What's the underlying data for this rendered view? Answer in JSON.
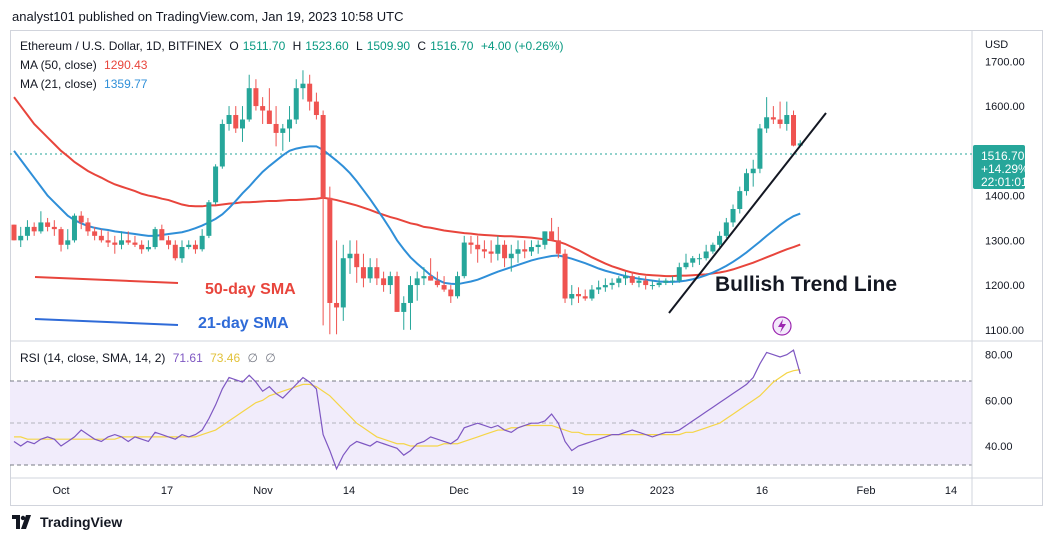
{
  "header": {
    "text": "analyst101 published on TradingView.com, Jan 19, 2023 10:58 UTC"
  },
  "legend": {
    "symbol": "Ethereum / U.S. Dollar, 1D, BITFINEX",
    "o_label": "O",
    "o": "1511.70",
    "h_label": "H",
    "h": "1523.60",
    "l_label": "L",
    "l": "1509.90",
    "c_label": "C",
    "c": "1516.70",
    "change": "+4.00 (+0.26%)",
    "ma50_label": "MA (50, close)",
    "ma50_value": "1290.43",
    "ma21_label": "MA (21, close)",
    "ma21_value": "1359.77",
    "rsi_label": "RSI (14, close, SMA, 14, 2)",
    "rsi_value": "71.61",
    "rsi_sma_value": "73.46",
    "empty1": "∅",
    "empty2": "∅"
  },
  "colors": {
    "up": "#26a69a",
    "down": "#ef5350",
    "ma50": "#e8453c",
    "ma21": "#2f8fd8",
    "rsi": "#7e57c2",
    "rsi_sma": "#f5d547",
    "trend": "#131722",
    "price_tag": "#26a69a"
  },
  "annotations": {
    "trend_line": "Bullish Trend Line",
    "sma50": "50-day SMA",
    "sma21": "21-day SMA"
  },
  "price_tag": {
    "price": "1516.70",
    "pct": "+14.29%",
    "time": "22:01:01"
  },
  "axis": {
    "currency": "USD"
  },
  "footer": {
    "brand": "TradingView"
  },
  "chart_data": {
    "type": "candlestick",
    "price_axis": {
      "ticks": [
        "1700.00",
        "1600.00",
        "1500.00",
        "1400.00",
        "1300.00",
        "1200.00",
        "1100.00"
      ],
      "ylim": [
        1075,
        1770
      ]
    },
    "rsi_axis": {
      "ticks": [
        "80.00",
        "60.00",
        "40.00"
      ],
      "ylim": [
        26,
        86
      ],
      "band": [
        30,
        70
      ]
    },
    "x_ticks": [
      "Oct",
      "17",
      "Nov",
      "14",
      "Dec",
      "19",
      "2023",
      "16",
      "Feb",
      "14"
    ],
    "dates_start": "2022-09-29",
    "candles": [
      [
        1335,
        1335,
        1300
      ],
      [
        1300,
        1330,
        1285
      ],
      [
        1310,
        1345,
        1300
      ],
      [
        1330,
        1340,
        1310
      ],
      [
        1320,
        1365,
        1315
      ],
      [
        1340,
        1350,
        1320
      ],
      [
        1330,
        1345,
        1310
      ],
      [
        1325,
        1330,
        1275
      ],
      [
        1290,
        1325,
        1280
      ],
      [
        1300,
        1360,
        1295
      ],
      [
        1355,
        1365,
        1325
      ],
      [
        1340,
        1350,
        1310
      ],
      [
        1320,
        1330,
        1300
      ],
      [
        1310,
        1325,
        1295
      ],
      [
        1300,
        1320,
        1285
      ],
      [
        1295,
        1310,
        1270
      ],
      [
        1290,
        1320,
        1280
      ],
      [
        1300,
        1320,
        1290
      ],
      [
        1295,
        1310,
        1285
      ],
      [
        1290,
        1300,
        1270
      ],
      [
        1280,
        1300,
        1275
      ],
      [
        1285,
        1330,
        1280
      ],
      [
        1325,
        1335,
        1305
      ],
      [
        1300,
        1310,
        1280
      ],
      [
        1290,
        1300,
        1255
      ],
      [
        1260,
        1300,
        1250
      ],
      [
        1285,
        1300,
        1280
      ],
      [
        1290,
        1300,
        1270
      ],
      [
        1280,
        1325,
        1275
      ],
      [
        1310,
        1390,
        1305
      ],
      [
        1385,
        1470,
        1380
      ],
      [
        1465,
        1570,
        1460
      ],
      [
        1560,
        1600,
        1545
      ],
      [
        1580,
        1600,
        1540
      ],
      [
        1550,
        1600,
        1520
      ],
      [
        1570,
        1670,
        1565
      ],
      [
        1640,
        1660,
        1590
      ],
      [
        1600,
        1620,
        1560
      ],
      [
        1590,
        1640,
        1580
      ],
      [
        1560,
        1600,
        1510
      ],
      [
        1540,
        1560,
        1500
      ],
      [
        1550,
        1600,
        1520
      ],
      [
        1570,
        1660,
        1560
      ],
      [
        1640,
        1680,
        1615
      ],
      [
        1650,
        1670,
        1590
      ],
      [
        1610,
        1630,
        1570
      ],
      [
        1580,
        1590,
        1110
      ],
      [
        1395,
        1420,
        1090
      ],
      [
        1160,
        1300,
        1090
      ],
      [
        1150,
        1290,
        1120
      ],
      [
        1260,
        1300,
        1225
      ],
      [
        1270,
        1300,
        1205
      ],
      [
        1240,
        1270,
        1195
      ],
      [
        1215,
        1260,
        1205
      ],
      [
        1240,
        1260,
        1200
      ],
      [
        1215,
        1230,
        1185
      ],
      [
        1200,
        1230,
        1180
      ],
      [
        1220,
        1230,
        1140
      ],
      [
        1140,
        1175,
        1100
      ],
      [
        1160,
        1220,
        1100
      ],
      [
        1200,
        1230,
        1165
      ],
      [
        1215,
        1240,
        1200
      ],
      [
        1220,
        1260,
        1210
      ],
      [
        1210,
        1230,
        1195
      ],
      [
        1200,
        1220,
        1185
      ],
      [
        1190,
        1200,
        1160
      ],
      [
        1175,
        1230,
        1170
      ],
      [
        1220,
        1310,
        1215
      ],
      [
        1295,
        1310,
        1270
      ],
      [
        1290,
        1310,
        1250
      ],
      [
        1280,
        1300,
        1260
      ],
      [
        1275,
        1300,
        1250
      ],
      [
        1270,
        1310,
        1255
      ],
      [
        1290,
        1300,
        1240
      ],
      [
        1260,
        1290,
        1230
      ],
      [
        1270,
        1300,
        1250
      ],
      [
        1280,
        1300,
        1260
      ],
      [
        1275,
        1300,
        1265
      ],
      [
        1285,
        1300,
        1270
      ],
      [
        1290,
        1320,
        1280
      ],
      [
        1320,
        1350,
        1310
      ],
      [
        1300,
        1330,
        1260
      ],
      [
        1270,
        1280,
        1160
      ],
      [
        1170,
        1200,
        1155
      ],
      [
        1180,
        1195,
        1160
      ],
      [
        1175,
        1190,
        1165
      ],
      [
        1170,
        1200,
        1165
      ],
      [
        1190,
        1210,
        1180
      ],
      [
        1195,
        1215,
        1185
      ],
      [
        1200,
        1215,
        1190
      ],
      [
        1205,
        1220,
        1195
      ],
      [
        1215,
        1230,
        1200
      ],
      [
        1220,
        1230,
        1200
      ],
      [
        1205,
        1220,
        1195
      ],
      [
        1210,
        1220,
        1190
      ],
      [
        1200,
        1210,
        1190
      ],
      [
        1200,
        1215,
        1195
      ],
      [
        1205,
        1215,
        1200
      ],
      [
        1210,
        1220,
        1200
      ],
      [
        1210,
        1250,
        1205
      ],
      [
        1240,
        1270,
        1235
      ],
      [
        1250,
        1265,
        1240
      ],
      [
        1260,
        1270,
        1245
      ],
      [
        1260,
        1290,
        1255
      ],
      [
        1275,
        1295,
        1270
      ],
      [
        1290,
        1320,
        1285
      ],
      [
        1310,
        1350,
        1305
      ],
      [
        1340,
        1380,
        1330
      ],
      [
        1370,
        1420,
        1360
      ],
      [
        1410,
        1460,
        1400
      ],
      [
        1450,
        1480,
        1420
      ],
      [
        1460,
        1560,
        1450
      ],
      [
        1550,
        1620,
        1540
      ],
      [
        1575,
        1600,
        1560
      ],
      [
        1570,
        1610,
        1550
      ],
      [
        1560,
        1610,
        1545
      ],
      [
        1580,
        1590,
        1510
      ],
      [
        1511.7,
        1523.6,
        1509.9,
        1516.7
      ]
    ],
    "ma50": [
      1620,
      1600,
      1580,
      1560,
      1545,
      1530,
      1515,
      1500,
      1488,
      1475,
      1465,
      1455,
      1447,
      1440,
      1432,
      1425,
      1420,
      1415,
      1410,
      1404,
      1400,
      1397,
      1393,
      1390,
      1385,
      1380,
      1377,
      1376,
      1376,
      1378,
      1378,
      1380,
      1382,
      1383,
      1385,
      1385,
      1386,
      1387,
      1388,
      1388,
      1389,
      1390,
      1390,
      1391,
      1392,
      1393,
      1395,
      1393,
      1390,
      1386,
      1382,
      1378,
      1373,
      1368,
      1362,
      1357,
      1352,
      1348,
      1343,
      1338,
      1335,
      1330,
      1328,
      1325,
      1322,
      1320,
      1318,
      1316,
      1315,
      1313,
      1312,
      1311,
      1310,
      1309,
      1309,
      1308,
      1307,
      1306,
      1304,
      1302,
      1300,
      1297,
      1292,
      1285,
      1278,
      1270,
      1262,
      1255,
      1248,
      1242,
      1237,
      1232,
      1228,
      1225,
      1223,
      1222,
      1221,
      1220,
      1220,
      1221,
      1221,
      1222,
      1223,
      1224,
      1226,
      1228,
      1231,
      1235,
      1240,
      1245,
      1250,
      1256,
      1262,
      1268,
      1274,
      1280,
      1285,
      1290.43
    ],
    "ma21": [
      1500,
      1480,
      1460,
      1440,
      1420,
      1400,
      1385,
      1370,
      1355,
      1345,
      1338,
      1332,
      1328,
      1325,
      1323,
      1320,
      1318,
      1316,
      1314,
      1312,
      1310,
      1310,
      1312,
      1314,
      1316,
      1318,
      1322,
      1327,
      1333,
      1340,
      1348,
      1358,
      1372,
      1388,
      1405,
      1420,
      1437,
      1453,
      1466,
      1478,
      1490,
      1500,
      1505,
      1508,
      1510,
      1510,
      1502,
      1490,
      1478,
      1465,
      1450,
      1432,
      1412,
      1392,
      1370,
      1348,
      1325,
      1300,
      1280,
      1262,
      1248,
      1235,
      1222,
      1212,
      1205,
      1203,
      1202,
      1205,
      1208,
      1212,
      1218,
      1224,
      1230,
      1235,
      1240,
      1245,
      1250,
      1255,
      1259,
      1262,
      1265,
      1266,
      1263,
      1259,
      1254,
      1249,
      1243,
      1237,
      1232,
      1228,
      1224,
      1220,
      1217,
      1214,
      1212,
      1210,
      1208,
      1207,
      1207,
      1208,
      1210,
      1213,
      1217,
      1222,
      1228,
      1235,
      1243,
      1252,
      1262,
      1273,
      1285,
      1297,
      1310,
      1322,
      1334,
      1345,
      1354,
      1359.77
    ],
    "rsi": [
      42,
      40,
      42,
      41,
      43,
      44,
      43,
      40,
      42,
      44,
      47,
      45,
      43,
      42,
      44,
      45,
      44,
      42,
      44,
      43,
      42,
      46,
      45,
      44,
      43,
      45,
      44,
      45,
      47,
      52,
      58,
      65,
      70,
      69,
      68,
      71,
      68,
      64,
      66,
      63,
      61,
      64,
      67,
      70,
      68,
      65,
      45,
      38,
      30,
      36,
      40,
      42,
      41,
      40,
      42,
      41,
      40,
      39,
      36,
      38,
      41,
      42,
      44,
      43,
      42,
      41,
      43,
      48,
      49,
      50,
      49,
      48,
      49,
      47,
      46,
      48,
      49,
      50,
      50,
      51,
      54,
      50,
      42,
      38,
      40,
      41,
      42,
      43,
      44,
      45,
      45,
      46,
      47,
      46,
      45,
      44,
      45,
      46,
      46,
      47,
      49,
      51,
      53,
      55,
      57,
      59,
      61,
      63,
      65,
      67,
      70,
      76,
      81,
      80,
      79,
      80,
      82,
      71.61
    ],
    "rsi_sma": [
      44,
      44,
      43,
      43,
      43,
      43,
      43,
      43,
      43,
      43,
      43,
      43,
      43,
      43,
      43,
      43,
      44,
      44,
      44,
      44,
      44,
      44,
      44,
      44,
      44,
      44,
      44,
      44,
      45,
      46,
      47,
      49,
      51,
      53,
      55,
      57,
      59,
      60,
      62,
      63,
      64,
      65,
      66,
      67,
      67,
      66,
      64,
      62,
      59,
      56,
      53,
      50,
      48,
      46,
      44,
      43,
      42,
      41,
      41,
      40,
      40,
      40,
      40,
      40,
      41,
      41,
      41,
      42,
      43,
      44,
      45,
      46,
      47,
      47,
      48,
      48,
      49,
      49,
      49,
      49,
      49,
      48,
      47,
      46,
      46,
      45,
      45,
      45,
      45,
      45,
      45,
      45,
      45,
      45,
      45,
      45,
      45,
      45,
      45,
      45,
      46,
      46,
      47,
      48,
      49,
      50,
      52,
      54,
      56,
      58,
      60,
      62,
      65,
      68,
      70,
      72,
      73,
      73.46
    ]
  }
}
